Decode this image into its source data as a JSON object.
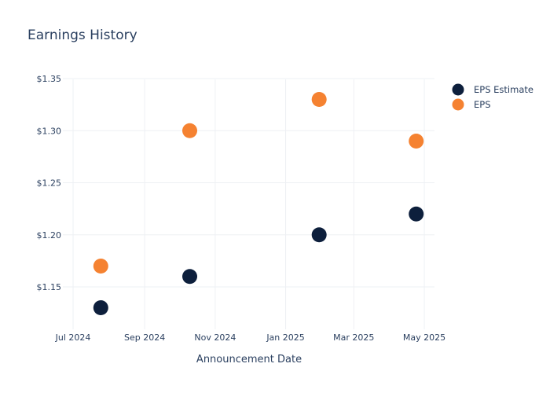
{
  "chart_data": {
    "type": "scatter",
    "title": "Earnings History",
    "xlabel": "Announcement Date",
    "ylabel": "",
    "x_ticks": [
      "Jul 2024",
      "Sep 2024",
      "Nov 2024",
      "Jan 2025",
      "Mar 2025",
      "May 2025"
    ],
    "y_ticks": [
      "$1.15",
      "$1.20",
      "$1.25",
      "$1.30",
      "$1.35"
    ],
    "ylim": [
      1.11,
      1.36
    ],
    "legend_position": "top-right",
    "grid": true,
    "series": [
      {
        "name": "EPS Estimate",
        "color": "#0d1f3c",
        "points": [
          {
            "x": "2024-07-25",
            "y": 1.13
          },
          {
            "x": "2024-10-10",
            "y": 1.16
          },
          {
            "x": "2025-01-30",
            "y": 1.2
          },
          {
            "x": "2025-04-24",
            "y": 1.22
          }
        ]
      },
      {
        "name": "EPS",
        "color": "#f58231",
        "points": [
          {
            "x": "2024-07-25",
            "y": 1.17
          },
          {
            "x": "2024-10-10",
            "y": 1.3
          },
          {
            "x": "2025-01-30",
            "y": 1.33
          },
          {
            "x": "2025-04-24",
            "y": 1.29
          }
        ]
      }
    ]
  }
}
